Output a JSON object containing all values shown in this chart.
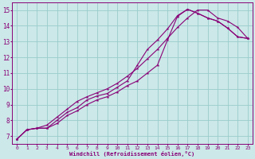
{
  "xlabel": "Windchill (Refroidissement éolien,°C)",
  "xlim": [
    -0.5,
    23.5
  ],
  "ylim": [
    6.5,
    15.5
  ],
  "bg_color": "#cce8e8",
  "grid_color": "#99cccc",
  "line_color": "#880077",
  "line1_x": [
    0,
    1,
    2,
    3,
    4,
    5,
    6,
    7,
    8,
    9,
    10,
    11,
    12,
    13,
    14,
    15,
    16,
    17,
    18,
    19,
    20,
    21,
    22,
    23
  ],
  "line1_y": [
    6.8,
    7.4,
    7.5,
    7.5,
    7.8,
    8.3,
    8.6,
    9.0,
    9.3,
    9.5,
    9.8,
    10.2,
    10.5,
    11.0,
    11.5,
    13.1,
    14.6,
    15.05,
    14.8,
    14.5,
    14.3,
    13.85,
    13.3,
    13.2
  ],
  "line2_x": [
    0,
    1,
    2,
    3,
    4,
    5,
    6,
    7,
    8,
    9,
    10,
    11,
    12,
    13,
    14,
    15,
    16,
    17,
    18,
    19,
    20,
    21,
    22,
    23
  ],
  "line2_y": [
    6.8,
    7.4,
    7.5,
    7.5,
    8.0,
    8.5,
    8.8,
    9.3,
    9.55,
    9.7,
    10.1,
    10.5,
    11.5,
    12.5,
    13.1,
    13.8,
    14.65,
    15.05,
    14.8,
    14.5,
    14.3,
    13.85,
    13.3,
    13.2
  ],
  "line3_x": [
    0,
    1,
    2,
    3,
    4,
    5,
    6,
    7,
    8,
    9,
    10,
    11,
    12,
    13,
    14,
    15,
    16,
    17,
    18,
    19,
    20,
    21,
    22,
    23
  ],
  "line3_y": [
    6.8,
    7.4,
    7.5,
    7.7,
    8.2,
    8.7,
    9.2,
    9.5,
    9.75,
    10.0,
    10.35,
    10.8,
    11.3,
    11.9,
    12.5,
    13.2,
    13.9,
    14.5,
    15.0,
    15.0,
    14.5,
    14.3,
    13.9,
    13.2
  ],
  "xticks": [
    0,
    1,
    2,
    3,
    4,
    5,
    6,
    7,
    8,
    9,
    10,
    11,
    12,
    13,
    14,
    15,
    16,
    17,
    18,
    19,
    20,
    21,
    22,
    23
  ],
  "yticks": [
    7,
    8,
    9,
    10,
    11,
    12,
    13,
    14,
    15
  ]
}
